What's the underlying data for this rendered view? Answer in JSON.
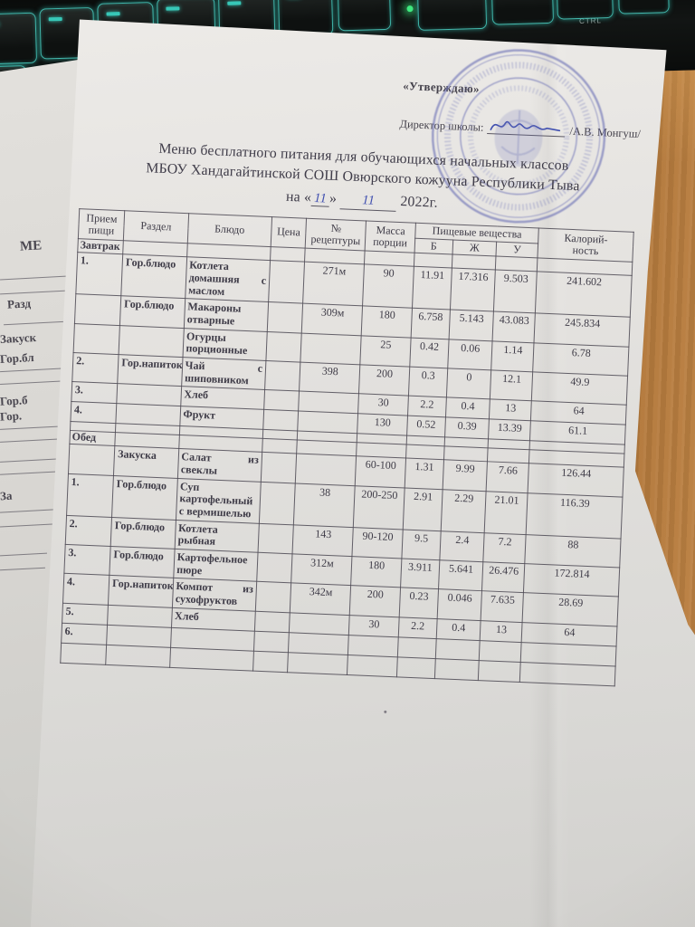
{
  "document": {
    "approval": "«Утверждаю»",
    "director_label": "Директор школы:",
    "director_name": "/А.В. Монгуш/",
    "title_lines": [
      "Меню бесплатного питания для обучающихся начальных классов",
      "МБОУ Хандагайтинской СОШ Овюрского кожууна Республики Тыва"
    ],
    "date_line": {
      "prefix": "на",
      "open_quote": "«",
      "day": "11",
      "close_quote": "»",
      "month": "11",
      "year": "2022г."
    }
  },
  "table": {
    "headers": {
      "meal": "Прием\nпищи",
      "section": "Раздел",
      "dish": "Блюдо",
      "price": "Цена",
      "recipe": "№\nрецептуры",
      "mass": "Масса\nпорции",
      "nutrients": "Пищевые вещества",
      "protein": "Б",
      "fat": "Ж",
      "carbs": "У",
      "calories": "Калорий-\nность"
    },
    "rows": [
      {
        "type": "section",
        "label": "Завтрак"
      },
      {
        "type": "item",
        "cells": [
          "1.",
          "Гор.блюдо",
          "Котлета домашняя с маслом",
          "",
          "271м",
          "90",
          "11.91",
          "17.316",
          "9.503",
          "241.602"
        ]
      },
      {
        "type": "item",
        "cells": [
          "",
          "Гор.блюдо",
          "Макароны отварные",
          "",
          "309м",
          "180",
          "6.758",
          "5.143",
          "43.083",
          "245.834"
        ]
      },
      {
        "type": "item",
        "cells": [
          "",
          "",
          "Огурцы порционные",
          "",
          "",
          "25",
          "0.42",
          "0.06",
          "1.14",
          "6.78"
        ]
      },
      {
        "type": "item",
        "cells": [
          "2.",
          "Гор.напиток",
          "Чай с шиповником",
          "",
          "398",
          "200",
          "0.3",
          "0",
          "12.1",
          "49.9"
        ]
      },
      {
        "type": "item",
        "cells": [
          "3.",
          "",
          "Хлеб",
          "",
          "",
          "30",
          "2.2",
          "0.4",
          "13",
          "64"
        ]
      },
      {
        "type": "item",
        "cells": [
          "4.",
          "",
          "Фрукт",
          "",
          "",
          "130",
          "0.52",
          "0.39",
          "13.39",
          "61.1"
        ]
      },
      {
        "type": "spacer"
      },
      {
        "type": "section",
        "label": "Обед"
      },
      {
        "type": "item",
        "cells": [
          "",
          "Закуска",
          "Салат из свеклы",
          "",
          "",
          "60-100",
          "1.31",
          "9.99",
          "7.66",
          "126.44"
        ]
      },
      {
        "type": "item",
        "cells": [
          "1.",
          "Гор.блюдо",
          "Суп картофельный с вермишелью",
          "",
          "38",
          "200-250",
          "2.91",
          "2.29",
          "21.01",
          "116.39"
        ]
      },
      {
        "type": "item",
        "cells": [
          "2.",
          "Гор.блюдо",
          "Котлета рыбная",
          "",
          "143",
          "90-120",
          "9.5",
          "2.4",
          "7.2",
          "88"
        ]
      },
      {
        "type": "item",
        "cells": [
          "3.",
          "Гор.блюдо",
          "Картофельное пюре",
          "",
          "312м",
          "180",
          "3.911",
          "5.641",
          "26.476",
          "172.814"
        ]
      },
      {
        "type": "item",
        "cells": [
          "4.",
          "Гор.напиток",
          "Компот из сухофруктов",
          "",
          "342м",
          "200",
          "0.23",
          "0.046",
          "7.635",
          "28.69"
        ]
      },
      {
        "type": "item",
        "cells": [
          "5.",
          "",
          "Хлеб",
          "",
          "",
          "30",
          "2.2",
          "0.4",
          "13",
          "64"
        ]
      },
      {
        "type": "item",
        "cells": [
          "6.",
          "",
          "",
          "",
          "",
          "",
          "",
          "",
          "",
          ""
        ]
      },
      {
        "type": "item",
        "cells": [
          "",
          "",
          "",
          "",
          "",
          "",
          "",
          "",
          "",
          ""
        ]
      }
    ]
  },
  "keyboard": {
    "frame_label": "CTRL"
  },
  "under_sheet": {
    "fragments": [
      "МЕ",
      "Разд",
      "Закуск",
      "Гор.бл",
      "Гор.б",
      "Гор.",
      "За"
    ]
  },
  "colors": {
    "desk_wood": "#c08448",
    "paper": "#e6e4e1",
    "stamp_ink": "#6a6fb5",
    "pen_ink": "#4150b0",
    "key_glow": "#3ce4d2",
    "led_green": "#3fe97f"
  }
}
